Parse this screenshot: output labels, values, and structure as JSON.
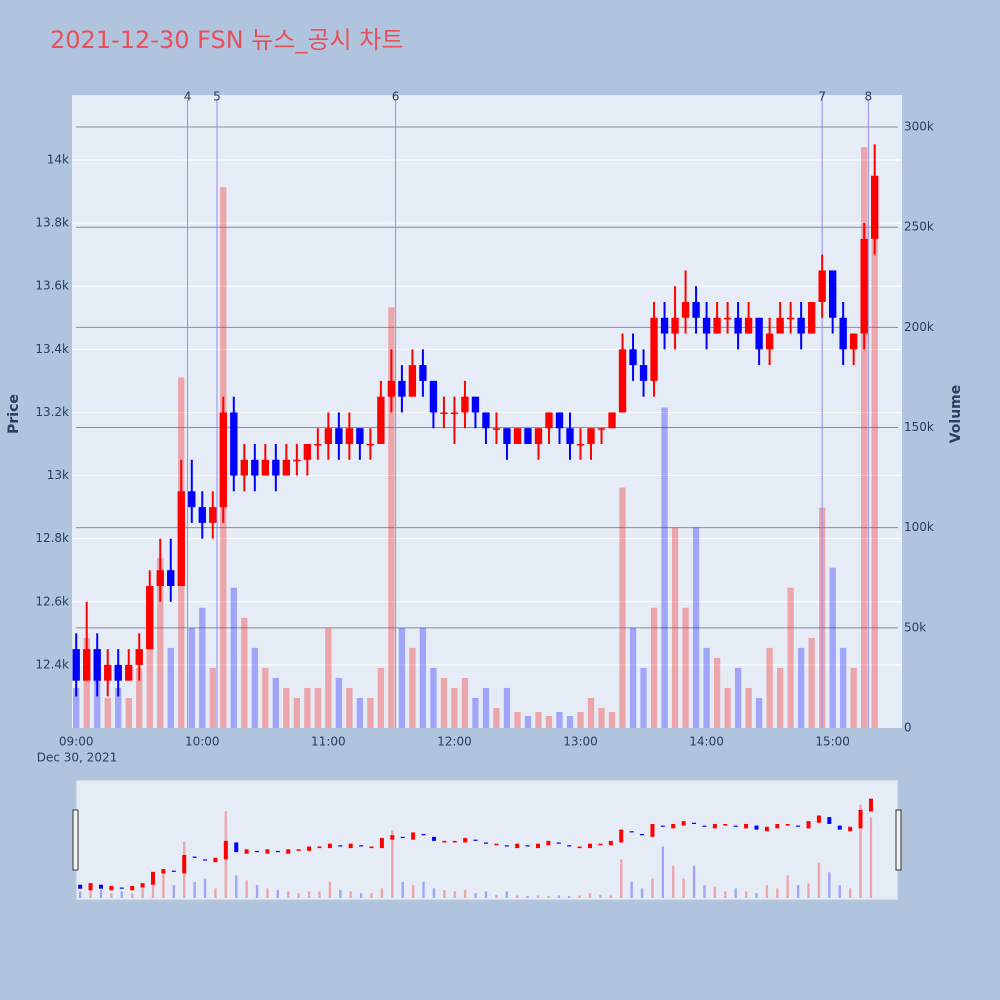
{
  "chart_data": {
    "type": "candlestick",
    "title": "2021-12-30 FSN 뉴스_공시 차트",
    "x_date_label": "Dec 30, 2021",
    "y_title": "Price",
    "y2_title": "Volume",
    "increasing_color": "#ff0000",
    "decreasing_color": "#0000ff",
    "x": [
      "09:00",
      "09:05",
      "09:10",
      "09:15",
      "09:20",
      "09:25",
      "09:30",
      "09:35",
      "09:40",
      "09:45",
      "09:50",
      "09:55",
      "10:00",
      "10:05",
      "10:10",
      "10:15",
      "10:20",
      "10:25",
      "10:30",
      "10:35",
      "10:40",
      "10:45",
      "10:50",
      "10:55",
      "11:00",
      "11:05",
      "11:10",
      "11:15",
      "11:20",
      "11:25",
      "11:30",
      "11:35",
      "11:40",
      "11:45",
      "11:50",
      "11:55",
      "12:00",
      "12:05",
      "12:10",
      "12:15",
      "12:20",
      "12:25",
      "12:30",
      "12:35",
      "12:40",
      "12:45",
      "12:50",
      "12:55",
      "13:00",
      "13:05",
      "13:10",
      "13:15",
      "13:20",
      "13:25",
      "13:30",
      "13:35",
      "13:40",
      "13:45",
      "13:50",
      "13:55",
      "14:00",
      "14:05",
      "14:10",
      "14:15",
      "14:20",
      "14:25",
      "14:30",
      "14:35",
      "14:40",
      "14:45",
      "14:50",
      "14:55",
      "15:00",
      "15:05",
      "15:10",
      "15:15",
      "15:20"
    ],
    "open": [
      12450,
      12350,
      12450,
      12350,
      12400,
      12350,
      12400,
      12450,
      12650,
      12700,
      12650,
      12950,
      12900,
      12850,
      12900,
      13200,
      13000,
      13050,
      13000,
      13050,
      13000,
      13050,
      13050,
      13100,
      13100,
      13150,
      13100,
      13150,
      13100,
      13100,
      13250,
      13300,
      13250,
      13350,
      13300,
      13200,
      13200,
      13200,
      13250,
      13200,
      13150,
      13150,
      13100,
      13150,
      13100,
      13150,
      13200,
      13150,
      13100,
      13100,
      13150,
      13150,
      13200,
      13400,
      13350,
      13300,
      13500,
      13450,
      13500,
      13550,
      13500,
      13450,
      13500,
      13500,
      13450,
      13500,
      13400,
      13450,
      13500,
      13500,
      13450,
      13550,
      13650,
      13500,
      13400,
      13450,
      13750
    ],
    "high": [
      12500,
      12600,
      12500,
      12450,
      12450,
      12450,
      12500,
      12700,
      12800,
      12800,
      13050,
      13050,
      12950,
      12950,
      13250,
      13250,
      13100,
      13100,
      13100,
      13100,
      13100,
      13100,
      13100,
      13150,
      13200,
      13200,
      13200,
      13150,
      13150,
      13300,
      13400,
      13350,
      13400,
      13400,
      13300,
      13250,
      13250,
      13300,
      13250,
      13200,
      13200,
      13150,
      13150,
      13150,
      13150,
      13200,
      13200,
      13200,
      13150,
      13150,
      13150,
      13200,
      13450,
      13450,
      13400,
      13550,
      13550,
      13600,
      13650,
      13600,
      13550,
      13550,
      13550,
      13550,
      13550,
      13500,
      13500,
      13550,
      13550,
      13550,
      13550,
      13700,
      13650,
      13550,
      13450,
      13800,
      14050
    ],
    "low": [
      12300,
      12350,
      12300,
      12300,
      12300,
      12350,
      12350,
      12450,
      12600,
      12600,
      12650,
      12850,
      12800,
      12800,
      12850,
      12950,
      12950,
      12950,
      13000,
      12950,
      13000,
      13000,
      13000,
      13050,
      13050,
      13050,
      13050,
      13050,
      13050,
      13100,
      13200,
      13200,
      13250,
      13250,
      13150,
      13150,
      13100,
      13150,
      13150,
      13100,
      13100,
      13050,
      13100,
      13100,
      13050,
      13100,
      13100,
      13050,
      13050,
      13050,
      13100,
      13150,
      13200,
      13300,
      13250,
      13250,
      13400,
      13400,
      13450,
      13450,
      13400,
      13450,
      13450,
      13400,
      13450,
      13350,
      13350,
      13450,
      13450,
      13400,
      13450,
      13500,
      13450,
      13350,
      13350,
      13400,
      13700
    ],
    "close": [
      12350,
      12450,
      12350,
      12400,
      12350,
      12400,
      12450,
      12650,
      12700,
      12650,
      12950,
      12900,
      12850,
      12900,
      13200,
      13000,
      13050,
      13000,
      13050,
      13000,
      13050,
      13050,
      13100,
      13100,
      13150,
      13100,
      13150,
      13100,
      13100,
      13250,
      13300,
      13250,
      13350,
      13300,
      13200,
      13200,
      13200,
      13250,
      13200,
      13150,
      13150,
      13100,
      13150,
      13100,
      13150,
      13200,
      13150,
      13100,
      13100,
      13150,
      13150,
      13200,
      13400,
      13350,
      13300,
      13500,
      13450,
      13500,
      13550,
      13500,
      13450,
      13500,
      13500,
      13450,
      13500,
      13400,
      13450,
      13500,
      13500,
      13450,
      13550,
      13650,
      13500,
      13400,
      13450,
      13750,
      13950
    ],
    "volume": [
      20000,
      45000,
      25000,
      15000,
      20000,
      15000,
      30000,
      60000,
      85000,
      40000,
      175000,
      50000,
      60000,
      30000,
      270000,
      70000,
      55000,
      40000,
      30000,
      25000,
      20000,
      15000,
      20000,
      20000,
      50000,
      25000,
      20000,
      15000,
      15000,
      30000,
      210000,
      50000,
      40000,
      50000,
      30000,
      25000,
      20000,
      25000,
      15000,
      20000,
      10000,
      20000,
      8000,
      6000,
      8000,
      6000,
      8000,
      6000,
      8000,
      15000,
      10000,
      8000,
      120000,
      50000,
      30000,
      60000,
      160000,
      100000,
      60000,
      100000,
      40000,
      35000,
      20000,
      30000,
      20000,
      15000,
      40000,
      30000,
      70000,
      40000,
      45000,
      110000,
      80000,
      40000,
      30000,
      290000,
      250000
    ],
    "news": [
      {
        "label": "4",
        "x": "09:53"
      },
      {
        "label": "5",
        "x": "10:07"
      },
      {
        "label": "6",
        "x": "11:32"
      },
      {
        "label": "7",
        "x": "14:55"
      },
      {
        "label": "8",
        "x": "15:17"
      }
    ],
    "xlim": [
      "08:58",
      "15:33"
    ],
    "xticks": [
      "09:00",
      "10:00",
      "11:00",
      "12:00",
      "13:00",
      "14:00",
      "15:00"
    ],
    "ylim": [
      12200,
      14206
    ],
    "yticks": [
      {
        "value": 12400,
        "label": "12.4k"
      },
      {
        "value": 12600,
        "label": "12.6k"
      },
      {
        "value": 12800,
        "label": "12.8k"
      },
      {
        "value": 13000,
        "label": "13k"
      },
      {
        "value": 13200,
        "label": "13.2k"
      },
      {
        "value": 13400,
        "label": "13.4k"
      },
      {
        "value": 13600,
        "label": "13.6k"
      },
      {
        "value": 13800,
        "label": "13.8k"
      },
      {
        "value": 14000,
        "label": "14k"
      }
    ],
    "y2lim": [
      0,
      316000
    ],
    "y2ticks": [
      0,
      {
        "value": 50000,
        "label": "50k"
      },
      {
        "value": 100000,
        "label": "100k"
      },
      {
        "value": 150000,
        "label": "150k"
      },
      {
        "value": 200000,
        "label": "200k"
      },
      {
        "value": 250000,
        "label": "250k"
      },
      {
        "value": 300000,
        "label": "300k"
      }
    ],
    "grid": true,
    "range_slider": true
  }
}
